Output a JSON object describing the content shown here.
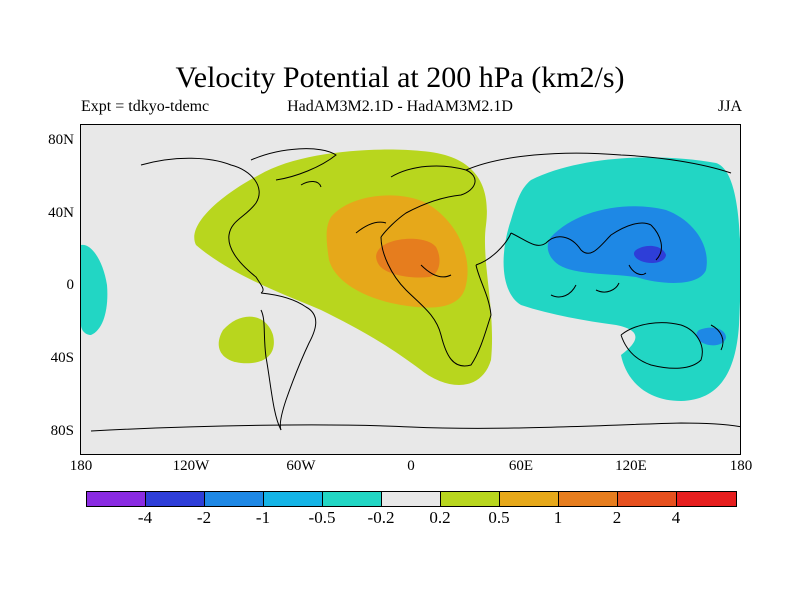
{
  "title": "Velocity Potential at 200 hPa (km2/s)",
  "subtitle_left": "Expt = tdkyo-tdemc",
  "subtitle_center": "HadAM3M2.1D - HadAM3M2.1D",
  "subtitle_right": "JJA",
  "lat_labels": [
    "80N",
    "40N",
    "0",
    "40S",
    "80S"
  ],
  "lon_labels": [
    "180",
    "120W",
    "60W",
    "0",
    "60E",
    "120E",
    "180"
  ],
  "colorbar": {
    "colors": [
      "#8a2be2",
      "#2e3ed8",
      "#1e88e5",
      "#14b4e6",
      "#22d6c4",
      "#e8e8e8",
      "#b8d61e",
      "#e6a81a",
      "#e67d1e",
      "#e6501e",
      "#e61e1e"
    ],
    "labels": [
      "-4",
      "-2",
      "-1",
      "-0.5",
      "-0.2",
      "0.2",
      "0.5",
      "1",
      "2",
      "4"
    ]
  },
  "regions": {
    "positive_moderate_color": "#b8d61e",
    "positive_strong_color": "#e6a81a",
    "positive_max_color": "#e67d1e",
    "negative_weak_color": "#22d6c4",
    "negative_moderate_color": "#1e88e5"
  }
}
